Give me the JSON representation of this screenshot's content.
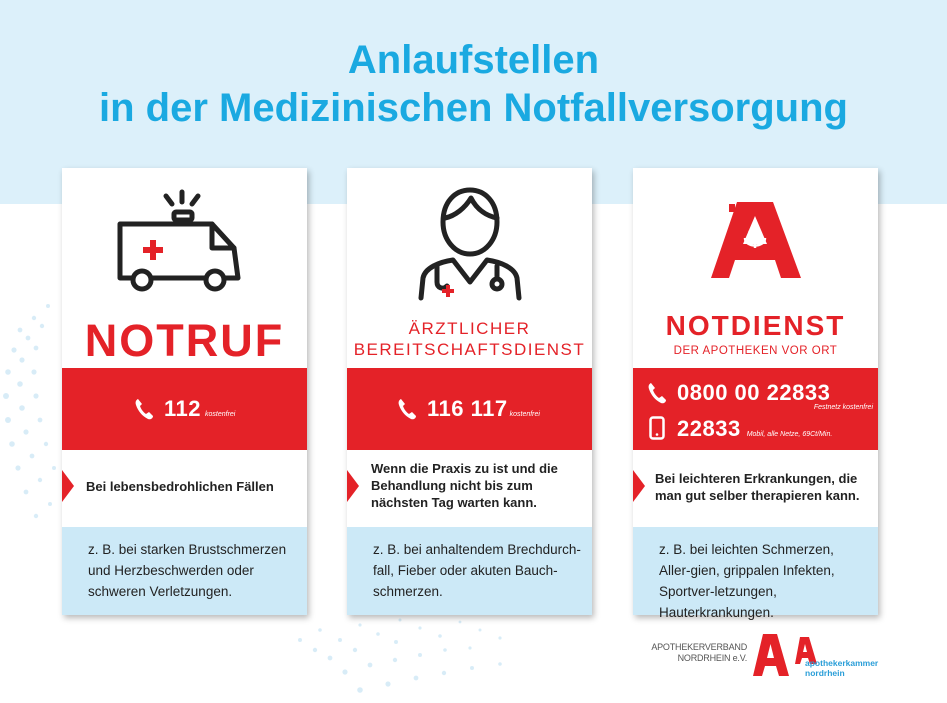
{
  "header": {
    "title_line1": "Anlaufstellen",
    "title_line2": "in der Medizinischen Notfallversorgung"
  },
  "colors": {
    "accent_red": "#e42228",
    "title_blue": "#1aa9e1",
    "light_blue": "#cce9f7",
    "header_bg": "#dcf0fa"
  },
  "cards": [
    {
      "icon": "ambulance-icon",
      "title": "NOTRUF",
      "phone": "112",
      "phone_note": "kostenfrei",
      "when": "Bei lebensbedrohlichen Fällen",
      "examples": "z. B. bei starken Brustschmerzen und Herzbeschwerden oder schweren Verletzungen."
    },
    {
      "icon": "doctor-icon",
      "title_line1": "ÄRZTLICHER",
      "title_line2": "BEREITSCHAFTSDIENST",
      "phone": "116 117",
      "phone_note": "kostenfrei",
      "when": "Wenn die Praxis zu ist und die Behandlung nicht bis zum nächsten Tag warten kann.",
      "examples": "z. B. bei anhaltendem Brechdurch-fall, Fieber oder akuten Bauch-schmerzen."
    },
    {
      "icon": "pharmacy-a-icon",
      "title": "NOTDIENST",
      "subtitle": "DER APOTHEKEN VOR ORT",
      "phone": "0800 00 22833",
      "phone_note": "Festnetz kostenfrei",
      "mobile": "22833",
      "mobile_note": "Mobil, alle Netze, 69Ct/Min.",
      "when": "Bei leichteren Erkrankungen, die man gut selber therapieren kann.",
      "examples": "z. B. bei leichten Schmerzen, Aller-gien, grippalen Infekten, Sportver-letzungen, Hauterkrankungen."
    }
  ],
  "footer": {
    "logo1_line1": "APOTHEKERVERBAND",
    "logo1_line2": "NORDRHEIN e.V.",
    "logo2_line1": "apothekerkammer",
    "logo2_line2": "nordrhein"
  }
}
